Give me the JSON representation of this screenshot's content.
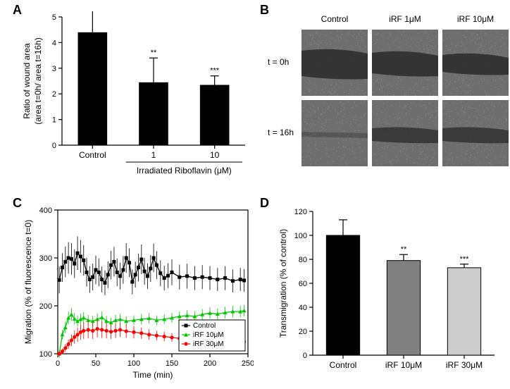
{
  "panelA": {
    "type": "bar",
    "label": "A",
    "categories": [
      "Control",
      "1",
      "10"
    ],
    "values": [
      4.4,
      2.45,
      2.35
    ],
    "errors": [
      0.85,
      0.95,
      0.35
    ],
    "annotations": [
      "",
      "**",
      "***"
    ],
    "bar_color": "#000000",
    "background": "#ffffff",
    "ylim": [
      0,
      5
    ],
    "ytick_step": 1,
    "ylabel_line1": "Ratio of wound area",
    "ylabel_line2": "(area t=0h/ area t=16h)",
    "xgroup_label": "Irradiated Riboflavin (μM)",
    "cat_fontsize": 12,
    "bar_width": 0.48
  },
  "panelB": {
    "type": "image-grid",
    "label": "B",
    "cols": [
      "Control",
      "iRF 1μM",
      "iRF 10μM"
    ],
    "rows": [
      "t = 0h",
      "t = 16h"
    ],
    "cell_bg": "#6e6e6e",
    "wound_color": "#2a2a2a"
  },
  "panelC": {
    "type": "line",
    "label": "C",
    "xlim": [
      0,
      250
    ],
    "xtick_step": 50,
    "ylim": [
      100,
      400
    ],
    "ytick_step": 100,
    "xlabel": "Time (min)",
    "ylabel": "Migration (% of fluorescence t=0)",
    "background": "#ffffff",
    "grid": false,
    "series": [
      {
        "name": "Control",
        "color": "#000000",
        "marker": "square",
        "x": [
          2,
          6,
          10,
          14,
          18,
          22,
          26,
          30,
          34,
          38,
          42,
          46,
          50,
          54,
          58,
          62,
          66,
          70,
          74,
          78,
          82,
          86,
          90,
          94,
          98,
          102,
          106,
          110,
          114,
          118,
          122,
          126,
          130,
          135,
          140,
          145,
          150,
          160,
          170,
          180,
          190,
          200,
          210,
          220,
          230,
          240,
          245
        ],
        "y": [
          254,
          280,
          292,
          300,
          298,
          288,
          310,
          303,
          295,
          270,
          255,
          260,
          275,
          270,
          255,
          248,
          265,
          285,
          292,
          270,
          262,
          275,
          300,
          290,
          250,
          265,
          280,
          297,
          272,
          262,
          278,
          300,
          285,
          268,
          258,
          263,
          270,
          260,
          262,
          258,
          260,
          258,
          255,
          258,
          252,
          255,
          253
        ],
        "err": [
          28,
          30,
          32,
          33,
          33,
          30,
          35,
          34,
          32,
          30,
          28,
          28,
          30,
          29,
          27,
          26,
          28,
          30,
          31,
          29,
          28,
          29,
          31,
          30,
          26,
          27,
          29,
          31,
          28,
          27,
          28,
          30,
          29,
          27,
          26,
          26,
          27,
          26,
          26,
          25,
          25,
          25,
          24,
          25,
          24,
          24,
          24
        ]
      },
      {
        "name": "iRF 10μM",
        "color": "#00c800",
        "marker": "triangle",
        "x": [
          2,
          6,
          10,
          14,
          18,
          22,
          26,
          30,
          34,
          40,
          46,
          52,
          58,
          64,
          70,
          76,
          82,
          90,
          100,
          110,
          120,
          130,
          140,
          150,
          160,
          170,
          180,
          190,
          200,
          210,
          220,
          230,
          240,
          245
        ],
        "y": [
          100,
          140,
          155,
          175,
          182,
          173,
          168,
          172,
          175,
          170,
          168,
          172,
          176,
          168,
          165,
          170,
          172,
          168,
          170,
          172,
          174,
          170,
          172,
          175,
          178,
          180,
          178,
          182,
          185,
          183,
          186,
          188,
          188,
          190
        ],
        "err": [
          8,
          10,
          12,
          13,
          13,
          12,
          11,
          12,
          12,
          11,
          11,
          12,
          12,
          11,
          10,
          11,
          11,
          10,
          10,
          11,
          11,
          10,
          10,
          10,
          11,
          11,
          11,
          11,
          12,
          11,
          12,
          12,
          12,
          12
        ]
      },
      {
        "name": "iRF 30μM",
        "color": "#ff0000",
        "marker": "circle",
        "x": [
          2,
          6,
          10,
          14,
          18,
          22,
          26,
          30,
          34,
          40,
          46,
          52,
          58,
          64,
          70,
          76,
          82,
          90,
          100,
          110,
          120,
          130,
          140,
          150,
          160,
          170,
          180,
          190,
          200,
          210,
          220,
          230,
          240,
          245
        ],
        "y": [
          100,
          105,
          112,
          120,
          128,
          135,
          140,
          145,
          148,
          150,
          148,
          152,
          150,
          148,
          146,
          148,
          150,
          147,
          145,
          143,
          140,
          138,
          136,
          134,
          132,
          130,
          130,
          128,
          128,
          127,
          127,
          126,
          125,
          125
        ],
        "err": [
          5,
          6,
          8,
          10,
          12,
          14,
          15,
          16,
          17,
          18,
          17,
          18,
          17,
          16,
          15,
          15,
          15,
          14,
          13,
          12,
          11,
          10,
          10,
          9,
          9,
          8,
          8,
          8,
          8,
          7,
          7,
          7,
          7,
          7
        ]
      }
    ],
    "legend": [
      "Control",
      "iRF 10μM",
      "iRF 30μM"
    ]
  },
  "panelD": {
    "type": "bar",
    "label": "D",
    "categories": [
      "Control",
      "iRF 10μM",
      "iRF 30μM"
    ],
    "values": [
      100,
      79,
      73
    ],
    "errors": [
      13,
      5,
      3
    ],
    "annotations": [
      "",
      "**",
      "***"
    ],
    "bar_colors": [
      "#000000",
      "#808080",
      "#cccccc"
    ],
    "ylim": [
      0,
      120
    ],
    "ytick_step": 20,
    "ylabel": "Transmigration (% of control)",
    "bar_width": 0.55
  }
}
